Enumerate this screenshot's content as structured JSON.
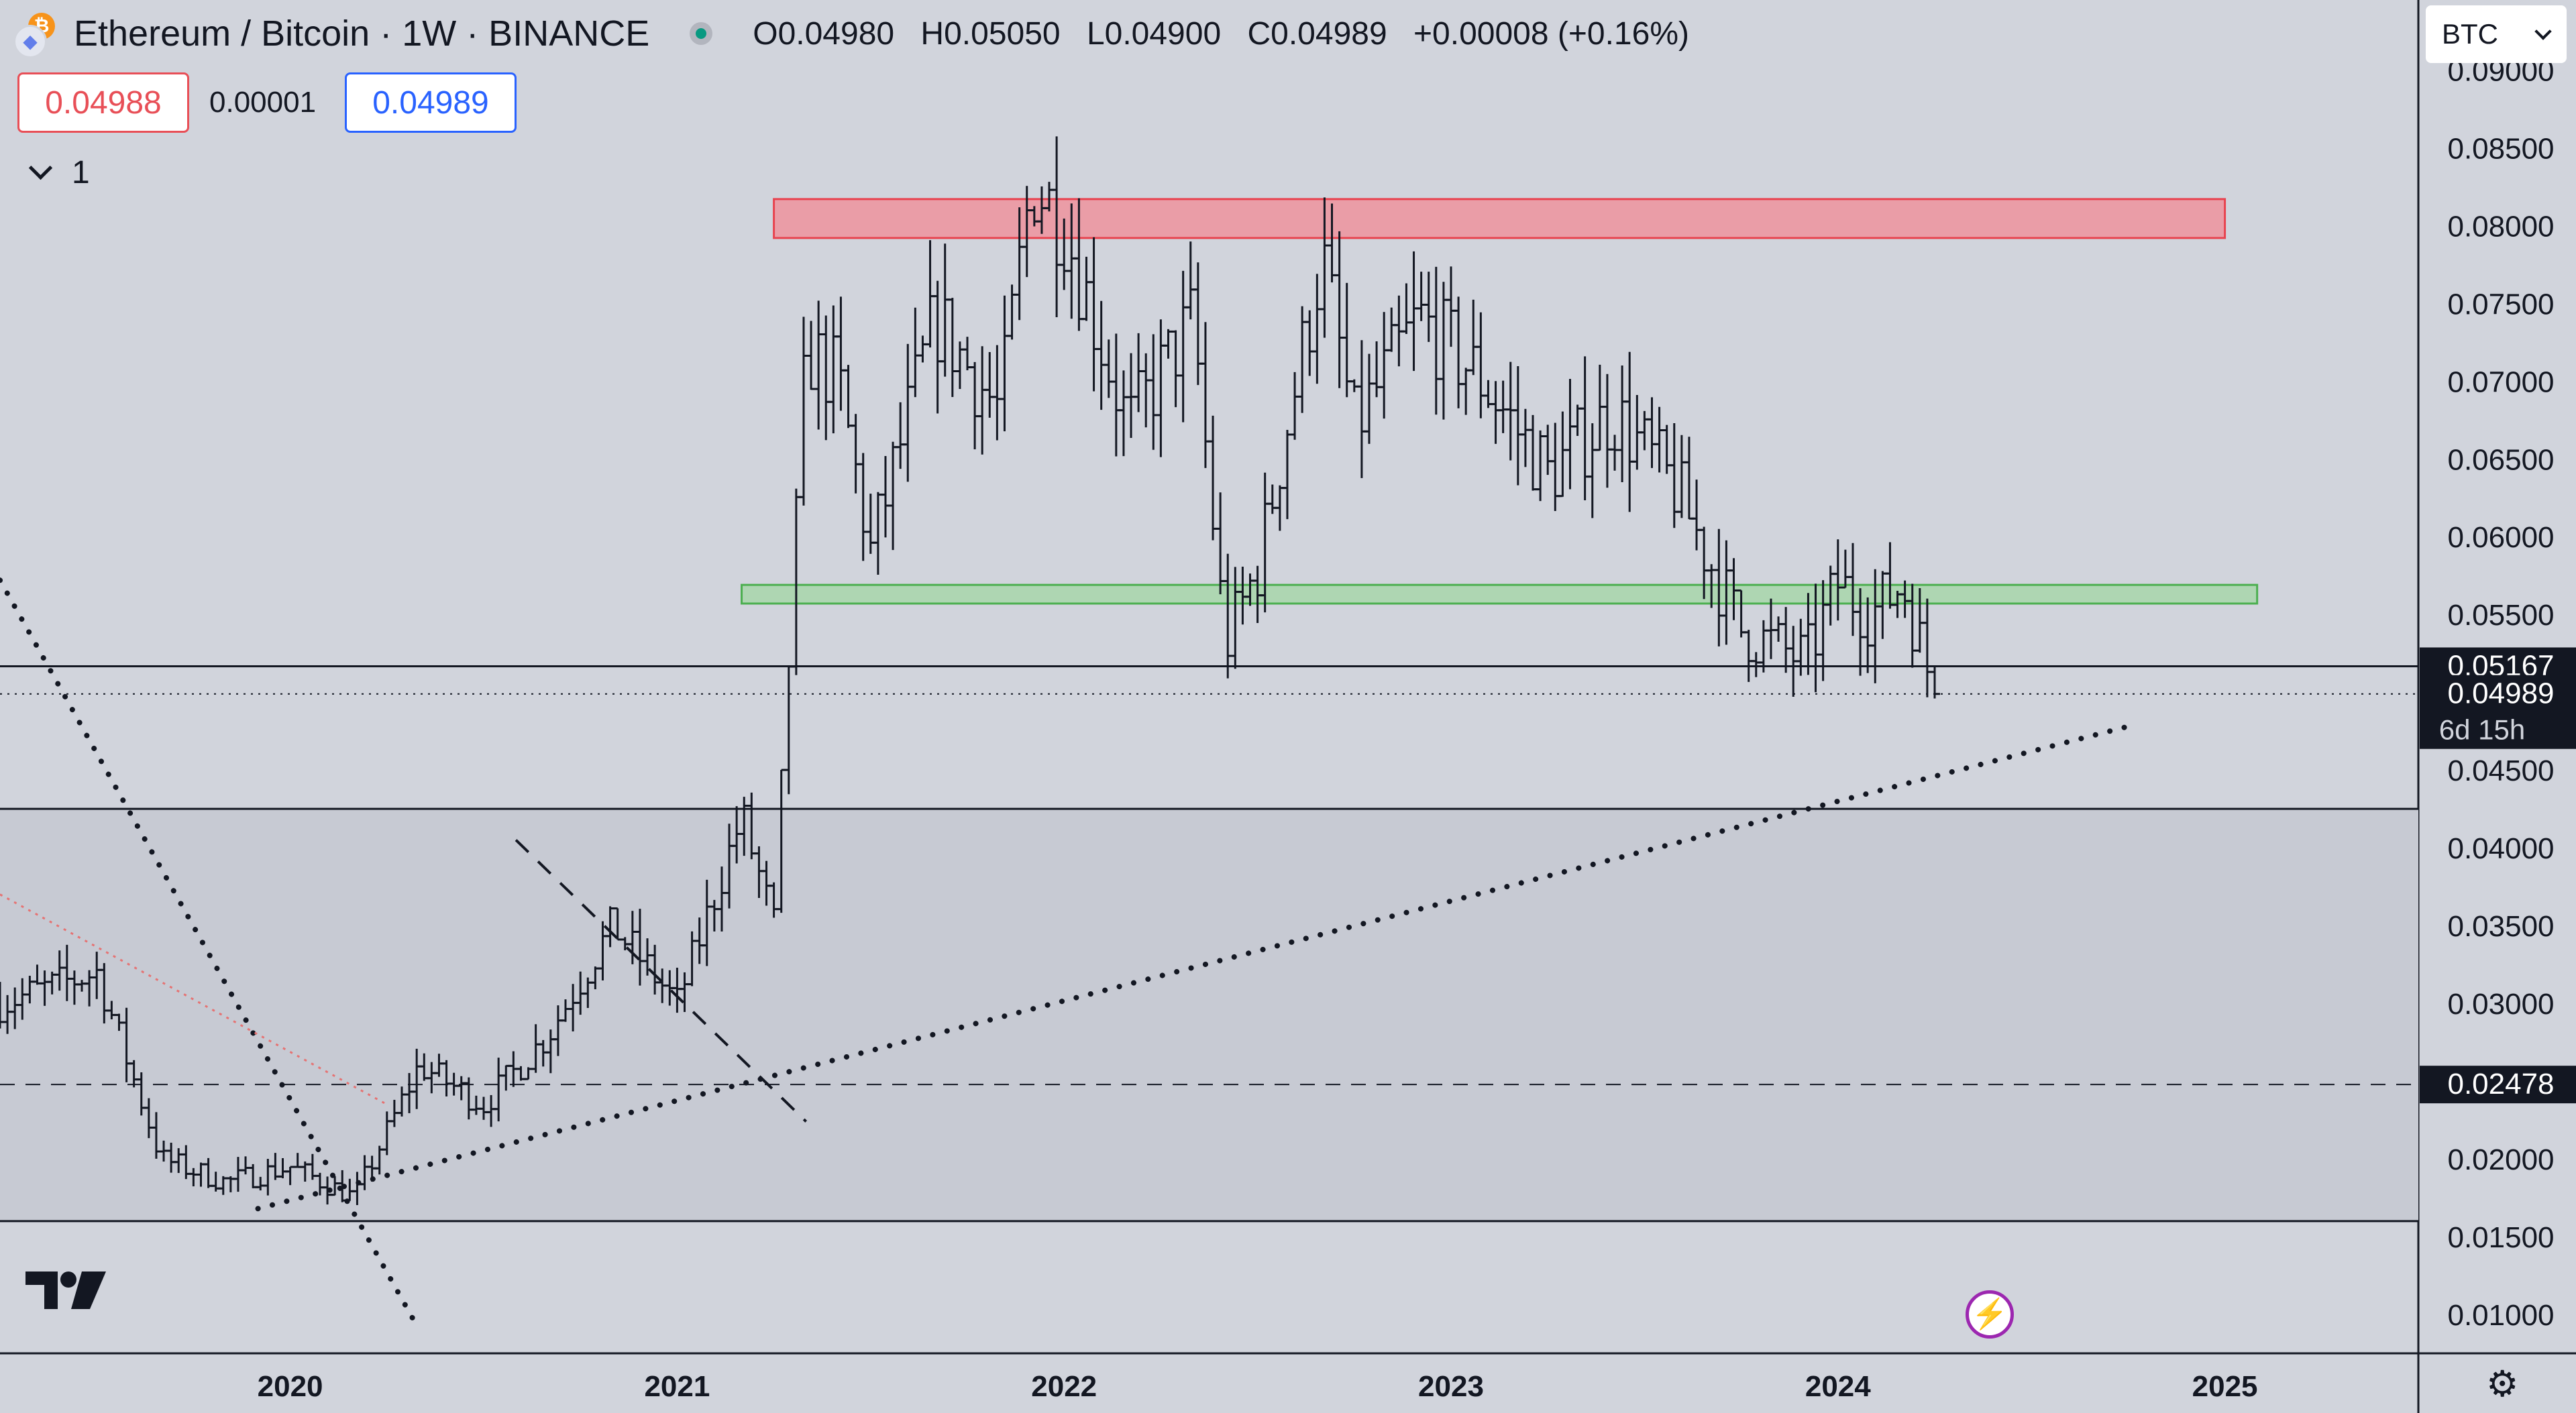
{
  "header": {
    "title": "Ethereum / Bitcoin · 1W · BINANCE",
    "ohlc": {
      "open": "O0.04980",
      "high": "H0.05050",
      "low": "L0.04900",
      "close": "C0.04989",
      "change": "+0.00008 (+0.16%)"
    }
  },
  "trade": {
    "sell": "0.04988",
    "spread": "0.00001",
    "buy": "0.04989"
  },
  "indicators": {
    "count": "1"
  },
  "currency": {
    "selected": "BTC"
  },
  "colors": {
    "background": "#d1d4dc",
    "resistance_zone": "#f28b96",
    "support_zone": "#a5d6a7",
    "candle": "#131722",
    "price_tag": "#131722"
  },
  "icons": [
    "eth-icon",
    "btc-icon",
    "market-status-icon",
    "chevron-down-icon",
    "tradingview-logo-icon",
    "lightning-icon",
    "settings-icon"
  ],
  "chart_data": {
    "type": "ohlc-bar",
    "y_scale": "linear",
    "ylim": [
      0.0075,
      0.0945
    ],
    "x_range": [
      "2019-04",
      "2025-06"
    ],
    "x_ticks": [
      "2020",
      "2021",
      "2022",
      "2023",
      "2024",
      "2025"
    ],
    "y_ticks": [
      "0.09000",
      "0.08500",
      "0.08000",
      "0.07500",
      "0.07000",
      "0.06500",
      "0.06000",
      "0.05500",
      "0.04500",
      "0.04000",
      "0.03500",
      "0.03000",
      "0.02000",
      "0.01500",
      "0.01000"
    ],
    "price_labels": [
      {
        "value": 0.05167,
        "text": "0.05167"
      },
      {
        "value": 0.04989,
        "text": "0.04989",
        "sub": "6d 15h"
      },
      {
        "value": 0.02478,
        "text": "0.02478"
      }
    ],
    "zones": [
      {
        "kind": "resistance",
        "from": "2021-04",
        "to": "2025-01",
        "low": 0.0792,
        "high": 0.0817
      },
      {
        "kind": "support",
        "from": "2021-03",
        "to": "2025-02",
        "low": 0.0557,
        "high": 0.0569
      }
    ],
    "horizontal_lines": [
      {
        "value": 0.05167,
        "style": "solid"
      },
      {
        "value": 0.04989,
        "style": "dotted"
      },
      {
        "value": 0.0425,
        "style": "solid"
      },
      {
        "value": 0.02478,
        "style": "dashed"
      },
      {
        "value": 0.016,
        "style": "solid"
      }
    ],
    "trendlines": [
      {
        "style": "dotted",
        "from": [
          "2019-04",
          0.0572
        ],
        "to": [
          "2020-05",
          0.009
        ]
      },
      {
        "style": "dotted",
        "from": [
          "2019-12",
          0.0168
        ],
        "to": [
          "2024-10",
          0.0478
        ]
      },
      {
        "style": "dashed",
        "from": [
          "2020-08",
          0.0405
        ],
        "to": [
          "2021-05",
          0.0224
        ]
      },
      {
        "style": "dotted-red",
        "from": [
          "2019-04",
          0.037
        ],
        "to": [
          "2020-04",
          0.0235
        ]
      }
    ],
    "anchors": [
      [
        "2019-04",
        0.03
      ],
      [
        "2019-07",
        0.032
      ],
      [
        "2019-09",
        0.02
      ],
      [
        "2019-11",
        0.0185
      ],
      [
        "2020-01",
        0.0195
      ],
      [
        "2020-03",
        0.0175
      ],
      [
        "2020-05",
        0.026
      ],
      [
        "2020-07",
        0.0235
      ],
      [
        "2020-09",
        0.028
      ],
      [
        "2020-11",
        0.035
      ],
      [
        "2021-01",
        0.03
      ],
      [
        "2021-03",
        0.042
      ],
      [
        "2021-04",
        0.035
      ],
      [
        "2021-05",
        0.072
      ],
      [
        "2021-06",
        0.07
      ],
      [
        "2021-07",
        0.059
      ],
      [
        "2021-09",
        0.074
      ],
      [
        "2021-11",
        0.068
      ],
      [
        "2021-12",
        0.083
      ],
      [
        "2022-01",
        0.08
      ],
      [
        "2022-03",
        0.067
      ],
      [
        "2022-05",
        0.074
      ],
      [
        "2022-06",
        0.053
      ],
      [
        "2022-07",
        0.058
      ],
      [
        "2022-09",
        0.078
      ],
      [
        "2022-10",
        0.067
      ],
      [
        "2022-12",
        0.074
      ],
      [
        "2023-02",
        0.07
      ],
      [
        "2023-04",
        0.064
      ],
      [
        "2023-06",
        0.068
      ],
      [
        "2023-08",
        0.063
      ],
      [
        "2023-10",
        0.054
      ],
      [
        "2023-12",
        0.052
      ],
      [
        "2024-01",
        0.057
      ],
      [
        "2024-02",
        0.055
      ],
      [
        "2024-03",
        0.057
      ],
      [
        "2024-04",
        0.0499
      ]
    ]
  }
}
